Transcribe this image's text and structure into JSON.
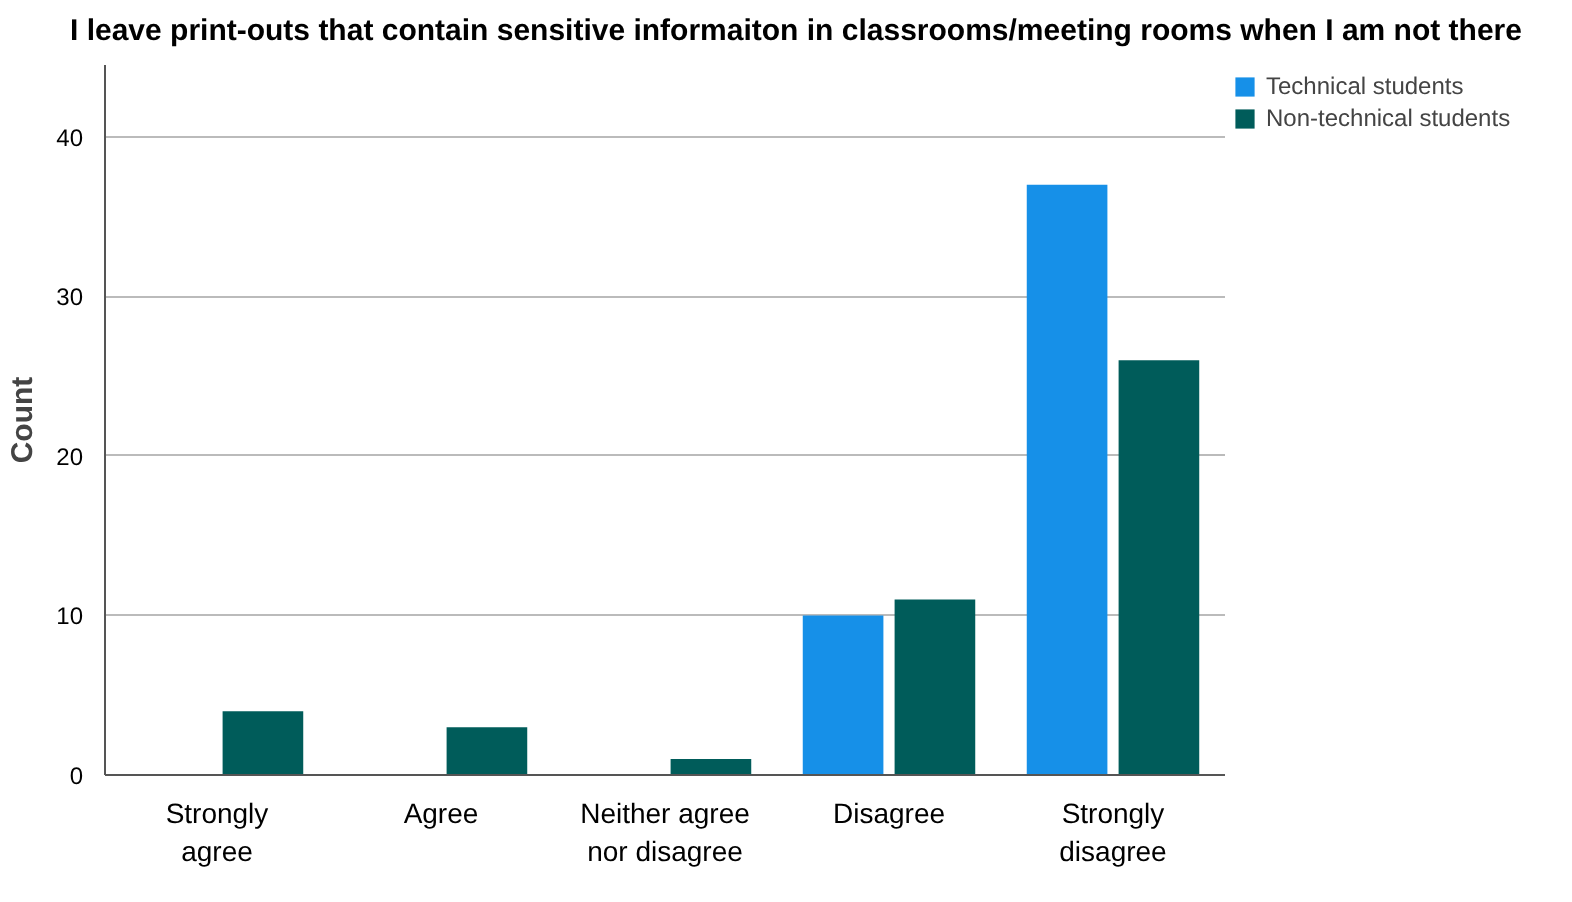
{
  "chart_data": {
    "type": "bar",
    "title": "I leave print-outs that contain sensitive informaiton in classrooms/meeting rooms when I am not there",
    "categories": [
      "Strongly agree",
      "Agree",
      "Neither agree nor disagree",
      "Disagree",
      "Strongly disagree"
    ],
    "series": [
      {
        "name": "Technical students",
        "color": "#1690e8",
        "values": [
          0,
          0,
          0,
          10,
          37
        ]
      },
      {
        "name": "Non-technical students",
        "color": "#005c5a",
        "values": [
          4,
          3,
          1,
          11,
          26
        ]
      }
    ],
    "ylabel": "Count",
    "ylim": [
      0,
      44.5
    ],
    "yticks": [
      0,
      10,
      20,
      30,
      40
    ],
    "grid": "y",
    "legend": "top right"
  }
}
